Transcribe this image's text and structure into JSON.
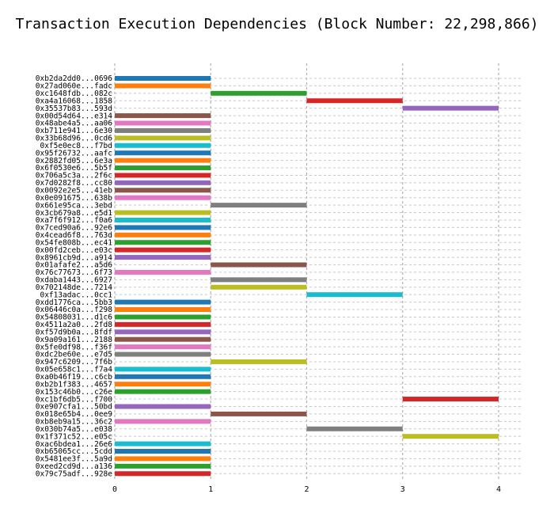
{
  "chart_data": {
    "type": "gantt",
    "title": "Transaction Execution Dependencies (Block Number: 22,298,866)",
    "xlabel": "",
    "ylabel": "",
    "xlim": [
      0,
      4
    ],
    "x_ticks": [
      0,
      1,
      2,
      3,
      4
    ],
    "grid": "dashed",
    "colors": {
      "blue": "#1f77b4",
      "orange": "#ff7f0e",
      "green": "#2ca02c",
      "red": "#d62728",
      "purple": "#9467bd",
      "brown": "#8c564b",
      "pink": "#e377c2",
      "gray": "#7f7f7f",
      "olive": "#bcbd22",
      "cyan": "#17becf"
    },
    "transactions": [
      {
        "label": "0xb2da2dd0...0696",
        "start": 0,
        "end": 1,
        "color": "blue"
      },
      {
        "label": "0x27ad060e...fadc",
        "start": 0,
        "end": 1,
        "color": "orange"
      },
      {
        "label": "0xc1648fdb...082c",
        "start": 1,
        "end": 2,
        "color": "green"
      },
      {
        "label": "0xa4a16068...1858",
        "start": 2,
        "end": 3,
        "color": "red"
      },
      {
        "label": "0x35537b83...593d",
        "start": 3,
        "end": 4,
        "color": "purple"
      },
      {
        "label": "0x00d54d64...e314",
        "start": 0,
        "end": 1,
        "color": "brown"
      },
      {
        "label": "0x48abe4a5...aa06",
        "start": 0,
        "end": 1,
        "color": "pink"
      },
      {
        "label": "0xb711e941...6e30",
        "start": 0,
        "end": 1,
        "color": "gray"
      },
      {
        "label": "0x33b68d96...0cd6",
        "start": 0,
        "end": 1,
        "color": "olive"
      },
      {
        "label": "0xf5e0ec8...f7bd",
        "start": 0,
        "end": 1,
        "color": "cyan"
      },
      {
        "label": "0x95f26732...aafc",
        "start": 0,
        "end": 1,
        "color": "blue"
      },
      {
        "label": "0x2882fd05...6e3a",
        "start": 0,
        "end": 1,
        "color": "orange"
      },
      {
        "label": "0x6f0530e6...5b5f",
        "start": 0,
        "end": 1,
        "color": "green"
      },
      {
        "label": "0x706a5c3a...2f6c",
        "start": 0,
        "end": 1,
        "color": "red"
      },
      {
        "label": "0x7d0282f8...cc80",
        "start": 0,
        "end": 1,
        "color": "purple"
      },
      {
        "label": "0x0092e2e5...41eb",
        "start": 0,
        "end": 1,
        "color": "brown"
      },
      {
        "label": "0x0e091675...638b",
        "start": 0,
        "end": 1,
        "color": "pink"
      },
      {
        "label": "0x661e95ca...3ebd",
        "start": 1,
        "end": 2,
        "color": "gray"
      },
      {
        "label": "0x3cb679a8...e5d1",
        "start": 0,
        "end": 1,
        "color": "olive"
      },
      {
        "label": "0xa7f6f912...f0a6",
        "start": 0,
        "end": 1,
        "color": "cyan"
      },
      {
        "label": "0x7ced90a6...92e6",
        "start": 0,
        "end": 1,
        "color": "blue"
      },
      {
        "label": "0x4cead6f8...763d",
        "start": 0,
        "end": 1,
        "color": "orange"
      },
      {
        "label": "0x54fe808b...ec41",
        "start": 0,
        "end": 1,
        "color": "green"
      },
      {
        "label": "0x00fd2ceb...e03c",
        "start": 0,
        "end": 1,
        "color": "red"
      },
      {
        "label": "0x8961cb9d...a914",
        "start": 0,
        "end": 1,
        "color": "purple"
      },
      {
        "label": "0x01afafe2...a5d6",
        "start": 1,
        "end": 2,
        "color": "brown"
      },
      {
        "label": "0x76c77673...6f73",
        "start": 0,
        "end": 1,
        "color": "pink"
      },
      {
        "label": "0xdaba1443...6927",
        "start": 1,
        "end": 2,
        "color": "gray"
      },
      {
        "label": "0x702148de...7214",
        "start": 1,
        "end": 2,
        "color": "olive"
      },
      {
        "label": "0xf13adac...0cc1",
        "start": 2,
        "end": 3,
        "color": "cyan"
      },
      {
        "label": "0xdd1776ca...5bb3",
        "start": 0,
        "end": 1,
        "color": "blue"
      },
      {
        "label": "0x06446c0a...f298",
        "start": 0,
        "end": 1,
        "color": "orange"
      },
      {
        "label": "0x54808031...d1c6",
        "start": 0,
        "end": 1,
        "color": "green"
      },
      {
        "label": "0x4511a2a0...2fd8",
        "start": 0,
        "end": 1,
        "color": "red"
      },
      {
        "label": "0xf57d9b0a...8fdf",
        "start": 0,
        "end": 1,
        "color": "purple"
      },
      {
        "label": "0x9a09a161...2188",
        "start": 0,
        "end": 1,
        "color": "brown"
      },
      {
        "label": "0x5fe0df98...f36f",
        "start": 0,
        "end": 1,
        "color": "pink"
      },
      {
        "label": "0xdc2be60e...e7d5",
        "start": 0,
        "end": 1,
        "color": "gray"
      },
      {
        "label": "0x947c6209...7f6b",
        "start": 1,
        "end": 2,
        "color": "olive"
      },
      {
        "label": "0x05e658c1...f7a4",
        "start": 0,
        "end": 1,
        "color": "cyan"
      },
      {
        "label": "0xa0b46f19...c6cb",
        "start": 0,
        "end": 1,
        "color": "blue"
      },
      {
        "label": "0xb2b1f383...4657",
        "start": 0,
        "end": 1,
        "color": "orange"
      },
      {
        "label": "0x153c46b0...c26e",
        "start": 0,
        "end": 1,
        "color": "green"
      },
      {
        "label": "0xc1bf6db5...f700",
        "start": 3,
        "end": 4,
        "color": "red"
      },
      {
        "label": "0xe907cfa1...50bd",
        "start": 0,
        "end": 1,
        "color": "purple"
      },
      {
        "label": "0x018e65b4...0ee9",
        "start": 1,
        "end": 2,
        "color": "brown"
      },
      {
        "label": "0xb8eb9a15...36c2",
        "start": 0,
        "end": 1,
        "color": "pink"
      },
      {
        "label": "0x030b74a5...e038",
        "start": 2,
        "end": 3,
        "color": "gray"
      },
      {
        "label": "0x1f371c52...e05c",
        "start": 3,
        "end": 4,
        "color": "olive"
      },
      {
        "label": "0xac6bdea1...26e6",
        "start": 0,
        "end": 1,
        "color": "cyan"
      },
      {
        "label": "0xb65065cc...5cdd",
        "start": 0,
        "end": 1,
        "color": "blue"
      },
      {
        "label": "0x5481ee3f...5a9d",
        "start": 0,
        "end": 1,
        "color": "orange"
      },
      {
        "label": "0xeed2cd9d...a136",
        "start": 0,
        "end": 1,
        "color": "green"
      },
      {
        "label": "0x79c75adf...928e",
        "start": 0,
        "end": 1,
        "color": "red"
      }
    ]
  }
}
